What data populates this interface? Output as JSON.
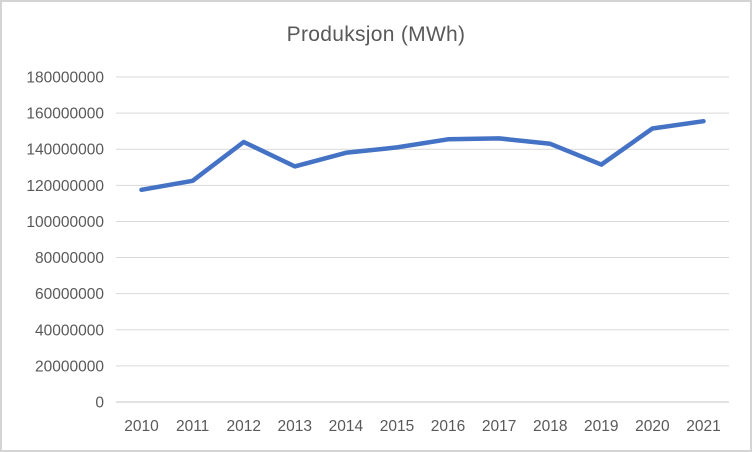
{
  "chart_data": {
    "type": "line",
    "title": "Produksjon (MWh)",
    "categories": [
      "2010",
      "2011",
      "2012",
      "2013",
      "2014",
      "2015",
      "2016",
      "2017",
      "2018",
      "2019",
      "2020",
      "2021"
    ],
    "series": [
      {
        "name": "Produksjon (MWh)",
        "values": [
          117500000,
          122500000,
          144000000,
          130500000,
          138000000,
          141000000,
          145500000,
          146000000,
          143000000,
          131500000,
          151500000,
          155500000
        ]
      }
    ],
    "xlabel": "",
    "ylabel": "",
    "ylim": [
      0,
      180000000
    ],
    "y_ticks": [
      {
        "value": 180000000,
        "label": "180000000"
      },
      {
        "value": 160000000,
        "label": "160000000"
      },
      {
        "value": 140000000,
        "label": "140000000"
      },
      {
        "value": 120000000,
        "label": "120000000"
      },
      {
        "value": 100000000,
        "label": "100000000"
      },
      {
        "value": 80000000,
        "label": "80000000"
      },
      {
        "value": 60000000,
        "label": "60000000"
      },
      {
        "value": 40000000,
        "label": "40000000"
      },
      {
        "value": 20000000,
        "label": "20000000"
      },
      {
        "value": 0,
        "label": "0"
      }
    ],
    "grid": true,
    "legend": "none",
    "colors": {
      "line": "#4472C4",
      "gridline": "#D9D9D9",
      "axis_line": "#C6C6C6",
      "text": "#595959",
      "title_text": "#595959",
      "border": "#D4D4D4",
      "background": "#FFFFFF"
    }
  }
}
